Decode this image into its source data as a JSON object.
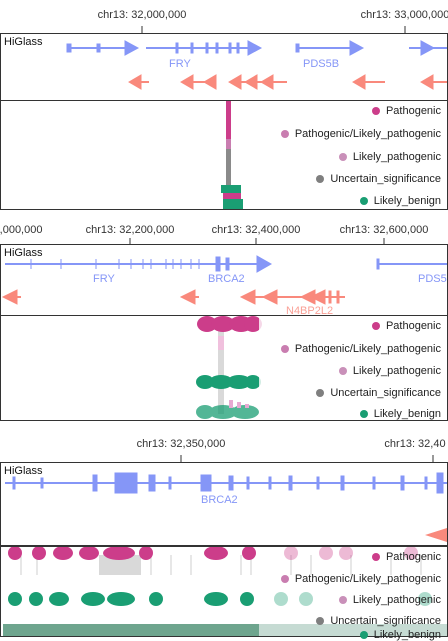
{
  "app_label": "HiGlass",
  "views": [
    {
      "ticks": [
        {
          "label": "chr13: 32,000,000"
        },
        {
          "label": "chr13: 33,000,000"
        }
      ],
      "genes": [
        {
          "label": "FRY"
        },
        {
          "label": "PDS5B"
        }
      ]
    },
    {
      "ticks": [
        {
          "label": "2,000,000"
        },
        {
          "label": "chr13: 32,200,000"
        },
        {
          "label": "chr13: 32,400,000"
        },
        {
          "label": "chr13: 32,600,000"
        }
      ],
      "genes": [
        {
          "label": "FRY"
        },
        {
          "label": "BRCA2"
        },
        {
          "label": "PDS5"
        },
        {
          "label": "N4BP2L2"
        }
      ]
    },
    {
      "ticks": [
        {
          "label": "chr13: 32,350,000"
        },
        {
          "label": "chr13: 32,40"
        }
      ],
      "genes": [
        {
          "label": "BRCA2"
        }
      ]
    }
  ],
  "legend": [
    {
      "label": "Pathogenic",
      "color": "#cc3d8a"
    },
    {
      "label": "Pathogenic/Likely_pathogenic",
      "color": "#c97db0"
    },
    {
      "label": "Likely_pathogenic",
      "color": "#c990b9"
    },
    {
      "label": "Uncertain_significance",
      "color": "#7f7f7f"
    },
    {
      "label": "Likely_benign",
      "color": "#1a9e73"
    }
  ],
  "colors": {
    "forward_gene": "#8596f7",
    "reverse_gene": "#f9897c",
    "pathogenic": "#cc3d8a",
    "likely_pathogenic": "#e8a9d2",
    "uncertain": "#8a8a8a",
    "likely_benign": "#1a9e73",
    "benign_dark": "#5e9b82"
  }
}
